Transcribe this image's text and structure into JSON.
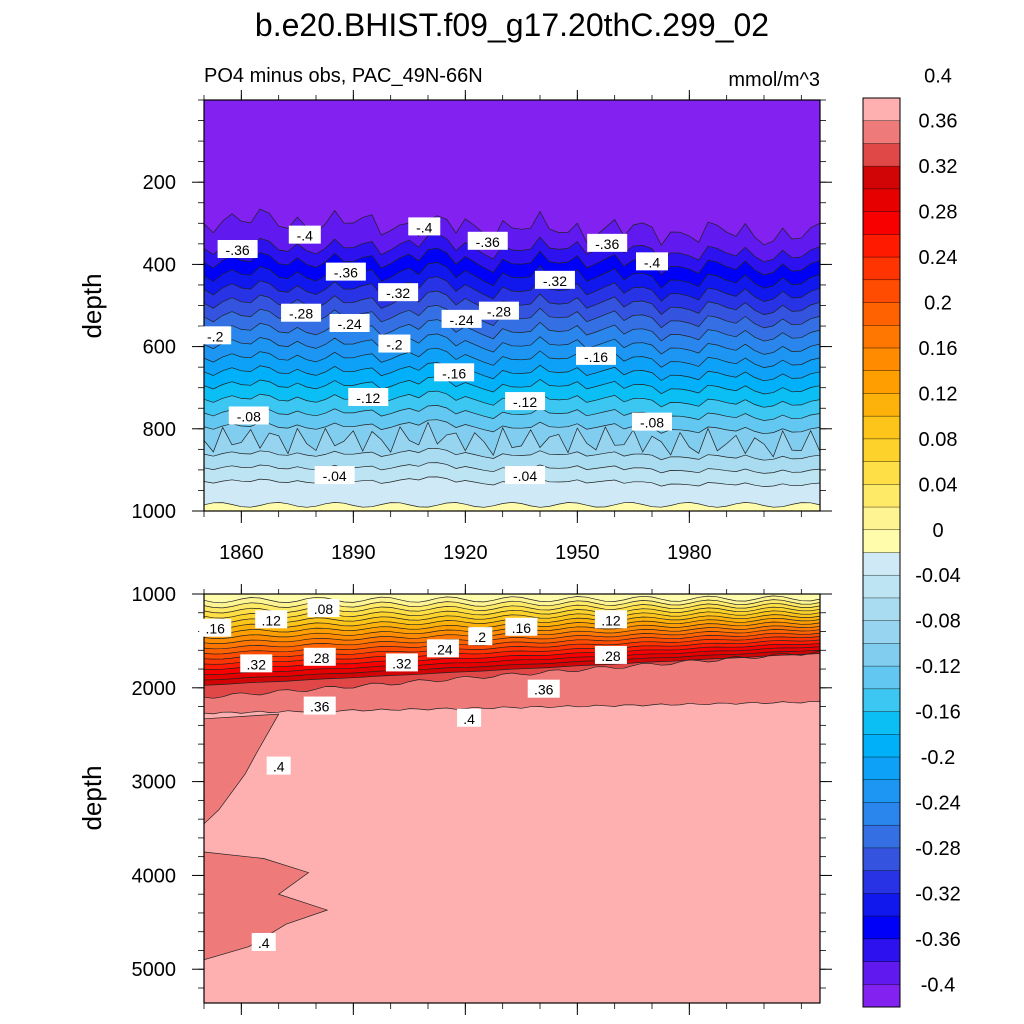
{
  "chart_data": {
    "type": "heatmap",
    "title": "b.e20.BHIST.f09_g17.20thC.299_02",
    "subtitle_left": "PO4 minus obs, PAC_49N-66N",
    "subtitle_right": "mmol/m^3",
    "xlabel": "",
    "ylabel": "depth",
    "xlim": [
      1850,
      2015
    ],
    "x_ticks": [
      "1860",
      "1890",
      "1920",
      "1950",
      "1980"
    ],
    "panels": [
      {
        "name": "upper",
        "ylim": [
          0,
          1000
        ],
        "y_ticks": [
          "200",
          "400",
          "600",
          "800",
          "1000"
        ],
        "contour_labels": [
          {
            "text": "-.36",
            "x": 1859,
            "y": 365
          },
          {
            "text": "-.4",
            "x": 1877,
            "y": 330
          },
          {
            "text": "-.4",
            "x": 1909,
            "y": 310
          },
          {
            "text": "-.36",
            "x": 1926,
            "y": 345
          },
          {
            "text": "-.36",
            "x": 1958,
            "y": 350
          },
          {
            "text": "-.4",
            "x": 1970,
            "y": 395
          },
          {
            "text": "-.36",
            "x": 1888,
            "y": 420
          },
          {
            "text": "-.32",
            "x": 1902,
            "y": 470
          },
          {
            "text": "-.32",
            "x": 1944,
            "y": 440
          },
          {
            "text": "-.28",
            "x": 1876,
            "y": 520
          },
          {
            "text": "-.28",
            "x": 1929,
            "y": 515
          },
          {
            "text": "-.24",
            "x": 1889,
            "y": 545
          },
          {
            "text": "-.24",
            "x": 1919,
            "y": 535
          },
          {
            "text": "-.2",
            "x": 1853,
            "y": 575
          },
          {
            "text": "-.2",
            "x": 1901,
            "y": 595
          },
          {
            "text": "-.16",
            "x": 1917,
            "y": 665
          },
          {
            "text": "-.16",
            "x": 1955,
            "y": 625
          },
          {
            "text": "-.12",
            "x": 1894,
            "y": 725
          },
          {
            "text": "-.12",
            "x": 1936,
            "y": 735
          },
          {
            "text": "-.08",
            "x": 1862,
            "y": 770
          },
          {
            "text": "-.08",
            "x": 1970,
            "y": 785
          },
          {
            "text": "-.04",
            "x": 1885,
            "y": 915
          },
          {
            "text": "-.04",
            "x": 1936,
            "y": 915
          }
        ]
      },
      {
        "name": "lower",
        "ylim": [
          1000,
          5360
        ],
        "y_ticks": [
          "1000",
          "2000",
          "3000",
          "4000",
          "5000"
        ],
        "contour_labels": [
          {
            "text": ".16",
            "x": 1853,
            "y": 1370
          },
          {
            "text": ".12",
            "x": 1868,
            "y": 1280
          },
          {
            "text": ".08",
            "x": 1882,
            "y": 1160
          },
          {
            "text": ".32",
            "x": 1864,
            "y": 1750
          },
          {
            "text": ".28",
            "x": 1881,
            "y": 1680
          },
          {
            "text": ".32",
            "x": 1903,
            "y": 1740
          },
          {
            "text": ".24",
            "x": 1914,
            "y": 1590
          },
          {
            "text": ".2",
            "x": 1924,
            "y": 1460
          },
          {
            "text": ".16",
            "x": 1935,
            "y": 1360
          },
          {
            "text": ".12",
            "x": 1959,
            "y": 1280
          },
          {
            "text": ".28",
            "x": 1959,
            "y": 1660
          },
          {
            "text": ".36",
            "x": 1941,
            "y": 2020
          },
          {
            "text": ".36",
            "x": 1881,
            "y": 2200
          },
          {
            "text": ".4",
            "x": 1921,
            "y": 2330
          },
          {
            "text": ".4",
            "x": 1870,
            "y": 2840
          },
          {
            "text": ".4",
            "x": 1866,
            "y": 4720
          }
        ]
      }
    ],
    "colorbar": {
      "levels": [
        -0.4,
        -0.38,
        -0.36,
        -0.34,
        -0.32,
        -0.3,
        -0.28,
        -0.26,
        -0.24,
        -0.22,
        -0.2,
        -0.18,
        -0.16,
        -0.14,
        -0.12,
        -0.1,
        -0.08,
        -0.06,
        -0.04,
        -0.02,
        0,
        0.02,
        0.04,
        0.06,
        0.08,
        0.1,
        0.12,
        0.14,
        0.16,
        0.18,
        0.2,
        0.22,
        0.24,
        0.26,
        0.28,
        0.3,
        0.32,
        0.34,
        0.36,
        0.38,
        0.4
      ],
      "colors": [
        "#8221f0",
        "#6019ee",
        "#2d11ee",
        "#0000f8",
        "#1018ee",
        "#2733e4",
        "#3453de",
        "#3470e4",
        "#2a85ec",
        "#1c96f2",
        "#0da2f7",
        "#00b0f9",
        "#0bbef3",
        "#3bc7f2",
        "#62c8f2",
        "#80cdef",
        "#96d4f0",
        "#a9dcf1",
        "#bde4f3",
        "#cfeaf6",
        "#fffcab",
        "#fff492",
        "#ffea68",
        "#ffdf45",
        "#fdd32b",
        "#fdc41a",
        "#fdb10b",
        "#fe9e00",
        "#fe8b00",
        "#ff7600",
        "#ff6200",
        "#ff4c00",
        "#ff3400",
        "#ff1a00",
        "#f90000",
        "#e70000",
        "#d10505",
        "#e04848",
        "#ef7a7a",
        "#feb0b0"
      ],
      "tick_labels": [
        "-0.4",
        "-0.36",
        "-0.32",
        "-0.28",
        "-0.24",
        "-0.2",
        "-0.16",
        "-0.12",
        "-0.08",
        "-0.04",
        "0",
        "0.04",
        "0.08",
        "0.12",
        "0.16",
        "0.2",
        "0.24",
        "0.28",
        "0.32",
        "0.36",
        "0.4"
      ]
    }
  }
}
